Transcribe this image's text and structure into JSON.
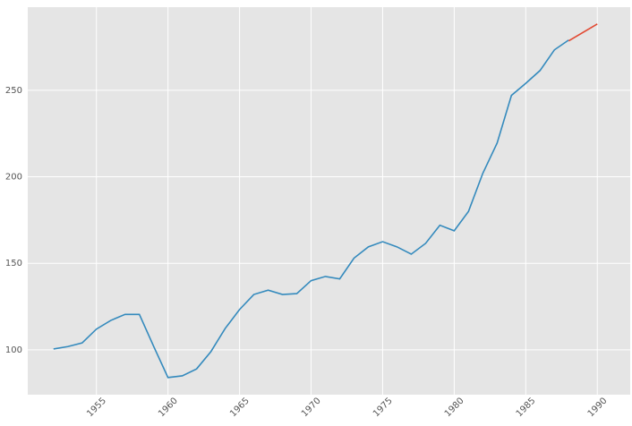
{
  "chart_data": {
    "type": "line",
    "xlim": [
      1950.2,
      1992.3
    ],
    "ylim": [
      74.1,
      298
    ],
    "xticks": [
      1955,
      1960,
      1965,
      1970,
      1975,
      1980,
      1985,
      1990
    ],
    "yticks": [
      100,
      150,
      200,
      250
    ],
    "grid": true,
    "series": [
      {
        "color": "#348abd",
        "x": [
          1952,
          1953,
          1954,
          1955,
          1956,
          1957,
          1958,
          1959,
          1960,
          1961,
          1962,
          1963,
          1964,
          1965,
          1966,
          1967,
          1968,
          1969,
          1970,
          1971,
          1972,
          1973,
          1974,
          1975,
          1976,
          1977,
          1978,
          1979,
          1980,
          1981,
          1982,
          1983,
          1984,
          1985,
          1986,
          1987,
          1988
        ],
        "values": [
          100.5,
          101.9,
          104,
          112,
          117,
          120.5,
          120.5,
          102,
          84,
          85,
          89,
          99,
          112.4,
          123.3,
          132,
          134.5,
          132,
          132.5,
          140,
          142.4,
          141,
          153,
          159.5,
          162.5,
          159.5,
          155.3,
          161.5,
          172,
          168.8,
          180,
          202,
          219.5,
          247,
          254,
          261.4,
          273.3,
          279
        ]
      },
      {
        "color": "#e24a33",
        "x": [
          1988,
          1990
        ],
        "values": [
          278.5,
          288.3
        ]
      }
    ]
  }
}
